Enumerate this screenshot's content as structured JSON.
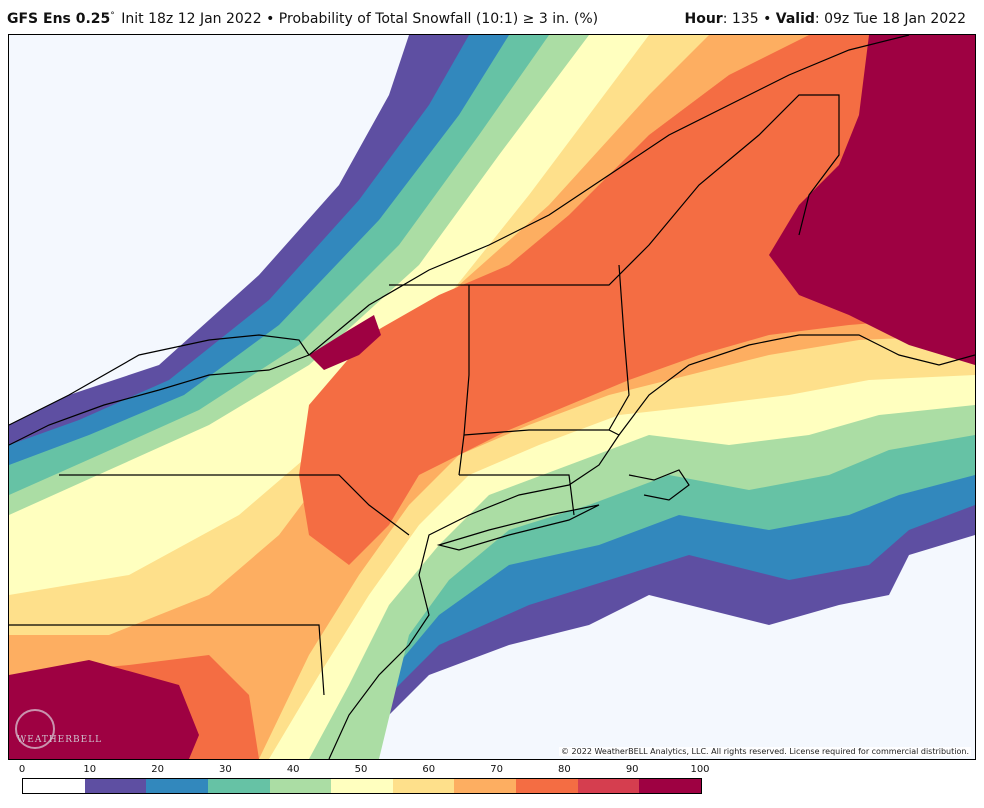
{
  "header": {
    "model": "GFS Ens 0.25",
    "degree_symbol": "°",
    "init": "Init 18z 12 Jan 2022",
    "separator": "•",
    "product": "Probability of Total Snowfall (10:1) ≥ 3 in. (%)",
    "hour_label": "Hour",
    "hour_value": ": 135",
    "valid_label": "Valid",
    "valid_value": ": 09z Tue 18 Jan 2022"
  },
  "map": {
    "copyright": "© 2022 WeatherBELL Analytics, LLC. All rights reserved. License required for commercial distribution.",
    "watermark": "WEATHERBELL"
  },
  "legend": {
    "ticks": [
      "0",
      "10",
      "20",
      "30",
      "40",
      "50",
      "60",
      "70",
      "80",
      "90",
      "100"
    ],
    "colors": [
      "#ffffff",
      "#5e4fa2",
      "#3288bd",
      "#66c2a5",
      "#abdda4",
      "#ffffbf",
      "#fee08b",
      "#fdae61",
      "#f46d43",
      "#d53e4f",
      "#9e0142"
    ]
  }
}
